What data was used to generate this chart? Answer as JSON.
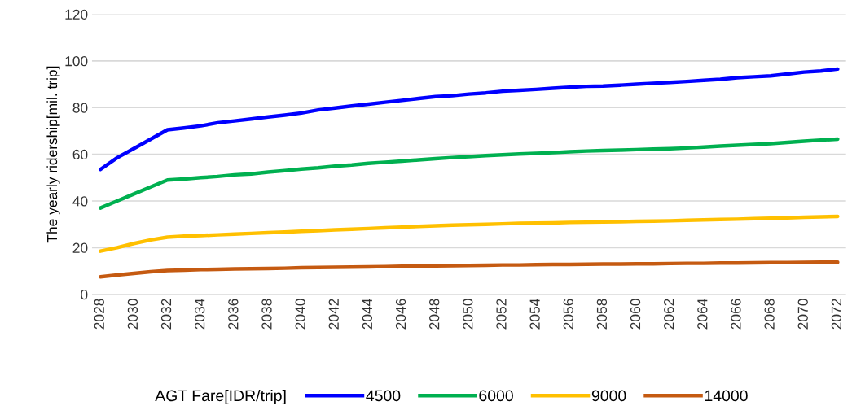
{
  "chart_data": {
    "type": "line",
    "ylabel": "The yearly ridership[mil. trip]",
    "legend_title": "AGT Fare[IDR/trip]",
    "legend": "bottom",
    "grid": "y",
    "marker": "none",
    "line_style": "solid",
    "categories": [
      "2028",
      null,
      "2030",
      null,
      "2032",
      null,
      "2034",
      null,
      "2036",
      null,
      "2038",
      null,
      "2040",
      null,
      "2042",
      null,
      "2044",
      null,
      "2046",
      null,
      "2048",
      null,
      "2050",
      null,
      "2052",
      null,
      "2054",
      null,
      "2056",
      null,
      "2058",
      null,
      "2060",
      null,
      "2062",
      null,
      "2064",
      null,
      "2066",
      null,
      "2068",
      null,
      "2070",
      null,
      "2072"
    ],
    "ylim": [
      0,
      120
    ],
    "yticks": [
      0,
      20,
      40,
      60,
      80,
      100,
      120
    ],
    "series": [
      {
        "name": "4500",
        "color": "#0000ff",
        "values": [
          53.5,
          58.5,
          62.5,
          66.5,
          70.5,
          71.3,
          72.2,
          73.5,
          74.3,
          75.1,
          76.0,
          76.8,
          77.7,
          79.0,
          79.8,
          80.7,
          81.5,
          82.3,
          83.1,
          83.9,
          84.7,
          85.1,
          85.8,
          86.3,
          87.0,
          87.4,
          87.8,
          88.3,
          88.7,
          89.1,
          89.2,
          89.6,
          90.0,
          90.4,
          90.8,
          91.2,
          91.7,
          92.1,
          92.8,
          93.2,
          93.6,
          94.4,
          95.2,
          95.7,
          96.5
        ]
      },
      {
        "name": "6000",
        "color": "#00b050",
        "values": [
          37,
          40,
          43,
          46,
          49,
          49.4,
          50,
          50.5,
          51.2,
          51.6,
          52.4,
          53,
          53.7,
          54.2,
          54.9,
          55.4,
          56.1,
          56.6,
          57.1,
          57.6,
          58.1,
          58.6,
          59,
          59.4,
          59.8,
          60.1,
          60.4,
          60.7,
          61.1,
          61.4,
          61.6,
          61.8,
          62,
          62.2,
          62.4,
          62.7,
          63.1,
          63.5,
          63.9,
          64.2,
          64.6,
          65.1,
          65.6,
          66.1,
          66.5
        ]
      },
      {
        "name": "9000",
        "color": "#ffc000",
        "values": [
          18.5,
          20,
          21.8,
          23.3,
          24.5,
          24.9,
          25.2,
          25.5,
          25.8,
          26.1,
          26.4,
          26.7,
          27,
          27.3,
          27.6,
          27.9,
          28.2,
          28.5,
          28.8,
          29.1,
          29.4,
          29.6,
          29.8,
          30,
          30.2,
          30.4,
          30.5,
          30.6,
          30.8,
          30.9,
          31,
          31.1,
          31.3,
          31.4,
          31.5,
          31.7,
          31.9,
          32.1,
          32.2,
          32.4,
          32.6,
          32.8,
          33,
          33.2,
          33.4
        ]
      },
      {
        "name": "14000",
        "color": "#c55a11",
        "values": [
          7.5,
          8.3,
          9,
          9.7,
          10.2,
          10.4,
          10.6,
          10.7,
          10.9,
          11,
          11.1,
          11.2,
          11.4,
          11.5,
          11.6,
          11.7,
          11.8,
          11.9,
          12,
          12.1,
          12.2,
          12.3,
          12.4,
          12.5,
          12.6,
          12.6,
          12.7,
          12.8,
          12.8,
          12.9,
          13,
          13,
          13.1,
          13.1,
          13.2,
          13.3,
          13.3,
          13.4,
          13.4,
          13.5,
          13.6,
          13.6,
          13.7,
          13.8,
          13.8
        ]
      }
    ]
  }
}
